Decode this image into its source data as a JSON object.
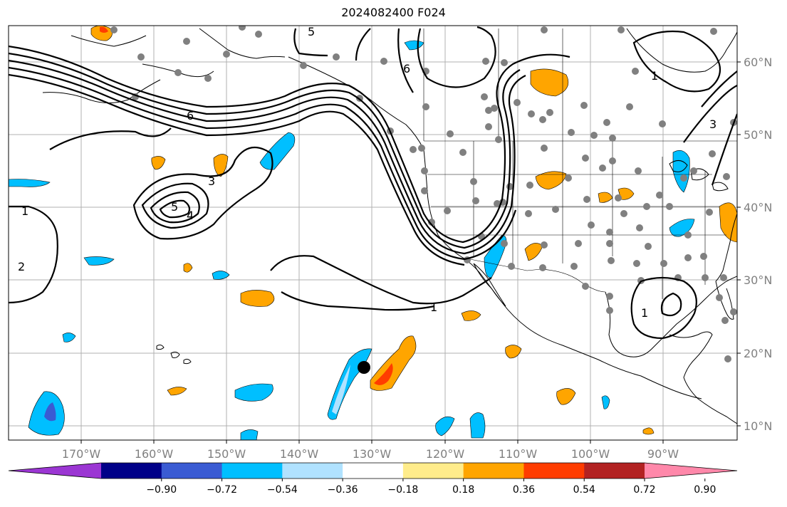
{
  "title": "2024082400 F024",
  "lon_labels": [
    "170°W",
    "160°W",
    "150°W",
    "140°W",
    "130°W",
    "120°W",
    "110°W",
    "100°W",
    "90°W"
  ],
  "lat_labels": [
    "60°N",
    "50°N",
    "40°N",
    "30°N",
    "20°N",
    "10°N"
  ],
  "contour_labels": [
    "1",
    "2",
    "3",
    "4",
    "5",
    "6",
    "1",
    "1",
    "3",
    "5",
    "6",
    "1"
  ],
  "colorbar": {
    "ticks": [
      "−0.90",
      "−0.72",
      "−0.54",
      "−0.36",
      "−0.18",
      "0.18",
      "0.36",
      "0.54",
      "0.72",
      "0.90"
    ],
    "colors": [
      "#9b36d3",
      "#000088",
      "#3a5bd3",
      "#00bfff",
      "#b0e2ff",
      "#ffffff",
      "#ffec8b",
      "#ffa500",
      "#ff3c00",
      "#b22222",
      "#ff88aa"
    ]
  }
}
